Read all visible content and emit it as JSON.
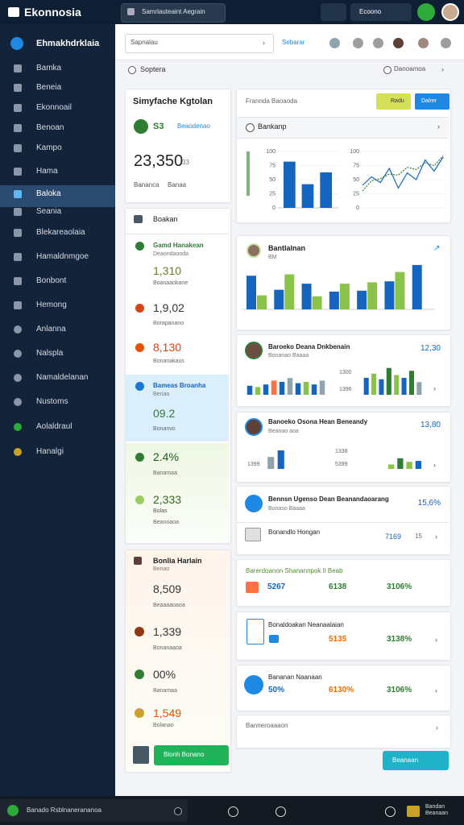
{
  "topbar": {
    "brand": "Ekonnosia",
    "search": "Samrlauteaint Aegrain",
    "account": "Ecoono"
  },
  "sidebar": {
    "title": "Ehmakhdrklaia",
    "items": [
      "Bamka",
      "Beneia",
      "Ekonnoail",
      "Benoan",
      "Kampo",
      "Hama",
      "Baloka",
      "Seania",
      "Blekareaolaia",
      "Hamaldnmgoe",
      "Bonbont",
      "Hemong",
      "Anlanna",
      "Nalspla",
      "Namaldelanan",
      "Nustoms",
      "Aolaldraul",
      "Hanalgi"
    ]
  },
  "toolbar": {
    "select": "Sapnalau",
    "link": "Sebarar"
  },
  "breadcrumb": {
    "title": "Soptera",
    "right": "Danoamoa"
  },
  "summary": {
    "title": "Simyfache Kgtolan",
    "badge": "S3",
    "link": "Beaodenao",
    "value": "23,350",
    "unit": "33",
    "left": "Bananca",
    "right": "Banaa"
  },
  "metrics": {
    "title": "Boakan",
    "items": [
      {
        "label": "Gamd Hanakean",
        "sub": "Deaondaooda",
        "value": "1,310",
        "note": "Boanaaokane"
      },
      {
        "value": "1,9,02",
        "note": "Borapanano"
      },
      {
        "value": "8,130",
        "note": "Bonanakaus"
      },
      {
        "label": "Bameas Broanha",
        "sub": "Benao",
        "value": "09.2",
        "note": "Bonanvo"
      },
      {
        "value": "2.4%",
        "note": "Banamaa"
      },
      {
        "value": "2,333",
        "sub": "Bolas",
        "note": "Beanoaoa"
      }
    ]
  },
  "totals": {
    "title": "Bonlia Harlain",
    "sub": "Benao",
    "items": [
      {
        "value": "8,509",
        "note": "Beaaaaoaoa"
      },
      {
        "value": "1,339",
        "note": "Bonanaaoa"
      },
      {
        "value": "00%",
        "note": "Banamaa"
      },
      {
        "value": "1,549",
        "note": "Bolanao"
      }
    ],
    "button": "Blonh Bonano"
  },
  "overview": {
    "title": "Frannda Baoaoda",
    "button_yellow": "Radu",
    "button_blue": "Dalrer",
    "section": "Bankanp",
    "bar_chart": {
      "type": "bar",
      "color": "#1565c0",
      "values": [
        82,
        42,
        63
      ],
      "ylim": [
        0,
        100
      ],
      "yticks": [
        0,
        25,
        50,
        75,
        100
      ]
    },
    "line_chart": {
      "type": "line",
      "ylim": [
        0,
        100
      ],
      "yticks": [
        0,
        25,
        50,
        75,
        100
      ],
      "series": [
        {
          "color": "#1565c0",
          "values": [
            40,
            55,
            45,
            70,
            35,
            62,
            50,
            85,
            65,
            90
          ]
        },
        {
          "color": "#2e7d32",
          "values": [
            30,
            48,
            52,
            60,
            58,
            72,
            68,
            80,
            75,
            92
          ]
        }
      ]
    }
  },
  "breakdown": {
    "title": "Bantlalnan",
    "sub": "BM",
    "chart": {
      "type": "bar",
      "ylim": [
        0,
        100
      ],
      "series": [
        {
          "color": "#1565c0",
          "values": [
            72,
            42,
            55,
            38,
            40,
            60,
            95
          ]
        },
        {
          "color": "#8bc34a",
          "values": [
            30,
            75,
            28,
            55,
            58,
            80,
            null
          ]
        }
      ]
    }
  },
  "card_c": {
    "title": "Baroeko Deana Dnkbenain",
    "sub": "Bonanao Baaaa",
    "value": "12,30",
    "label_top": "1300",
    "label_bottom": "1396",
    "mini_left": {
      "type": "bar",
      "ylim": [
        0,
        100
      ],
      "colors": [
        "#1565c0",
        "#8bc34a",
        "#1565c0",
        "#ff7043",
        "#1565c0",
        "#90a4ae",
        "#1565c0",
        "#8bc34a",
        "#1565c0",
        "#90a4ae"
      ],
      "values": [
        35,
        30,
        40,
        55,
        50,
        65,
        45,
        50,
        40,
        55
      ]
    },
    "mini_right": {
      "type": "bar",
      "ylim": [
        0,
        100
      ],
      "colors": [
        "#1565c0",
        "#8bc34a",
        "#1565c0",
        "#2e7d32",
        "#8bc34a",
        "#1565c0",
        "#2e7d32",
        "#90a4ae"
      ],
      "values": [
        60,
        75,
        55,
        95,
        70,
        60,
        85,
        45
      ]
    }
  },
  "card_d": {
    "title": "Banoeko Osona Hean Beneandy",
    "sub": "Beanao aoa",
    "value": "13,80",
    "tick": "1399",
    "label_top": "1338",
    "label_bottom": "5399",
    "mini_left": {
      "type": "bar",
      "ylim": [
        0,
        100
      ],
      "colors": [
        "#90a4ae",
        "#1565c0"
      ],
      "values": [
        55,
        85
      ]
    },
    "mini_right": {
      "type": "bar",
      "ylim": [
        0,
        100
      ],
      "colors": [
        "#8bc34a",
        "#2e7d32",
        "#8bc34a",
        "#1565c0"
      ],
      "values": [
        25,
        60,
        40,
        45
      ]
    }
  },
  "card_e": {
    "title": "Bennsn Ugenso Dean Beanandaoarang",
    "sub": "Bonaso Baaaa",
    "value": "15,6%",
    "row_label": "Bonandlo Hongan",
    "row_value": "7169",
    "row_extra": "15"
  },
  "card_f": {
    "title": "Barerdoanon Shanannpok Il Beab",
    "a": "5267",
    "b": "6138",
    "c": "3106%"
  },
  "card_g": {
    "title": "Bonaldoakan Neanaalaian",
    "b": "5135",
    "c": "3138%"
  },
  "card_h": {
    "title": "Bananan Naanaan",
    "a": "50%",
    "b": "6130%",
    "c": "3106%"
  },
  "card_i": {
    "title": "Banneroaaaon"
  },
  "action": {
    "button": "Beanaan"
  },
  "bottombar": {
    "status": "Banado Rsblnanerananoa",
    "right": "Bandan Beanaan"
  }
}
